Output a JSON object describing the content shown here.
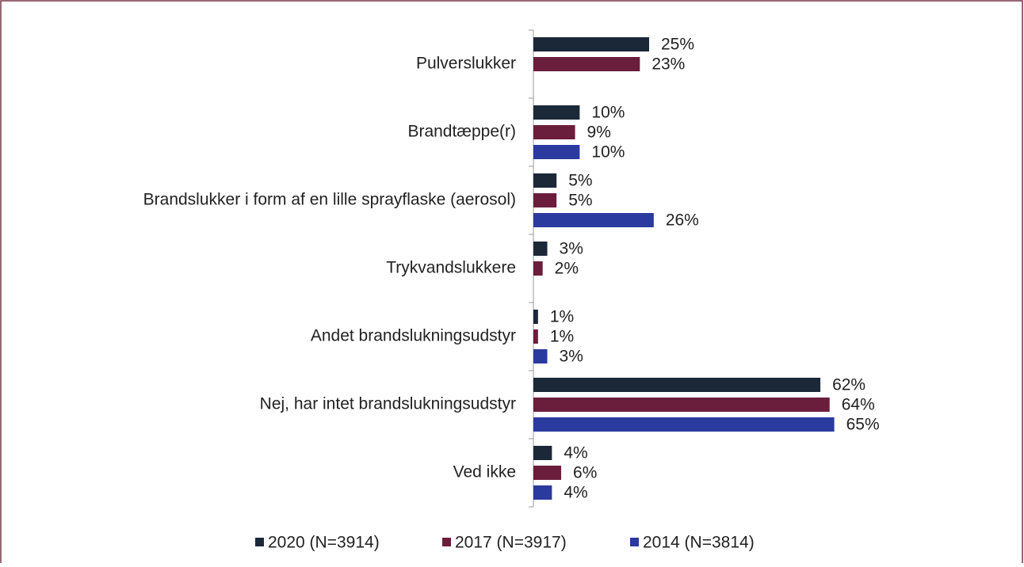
{
  "chart_data": {
    "type": "barh",
    "categories": [
      "Pulverslukker",
      "Brandtæppe(r)",
      "Brandslukker i form af en lille sprayflaske (aerosol)",
      "Trykvandslukkere",
      "Andet brandslukningsudstyr",
      "Nej, har intet brandslukningsudstyr",
      "Ved ikke"
    ],
    "series": [
      {
        "name": "2020 (N=3914)",
        "color": "#1b2838",
        "values": [
          25,
          10,
          5,
          3,
          1,
          62,
          4
        ],
        "value_labels": [
          "25%",
          "10%",
          "5%",
          "3%",
          "1%",
          "62%",
          "4%"
        ]
      },
      {
        "name": "2017 (N=3917)",
        "color": "#6b1e3c",
        "values": [
          23,
          9,
          5,
          2,
          1,
          64,
          6
        ],
        "value_labels": [
          "23%",
          "9%",
          "5%",
          "2%",
          "1%",
          "64%",
          "6%"
        ]
      },
      {
        "name": "2014 (N=3814)",
        "color": "#2a3a9e",
        "values": [
          null,
          10,
          26,
          null,
          3,
          65,
          4
        ],
        "value_labels": [
          null,
          "10%",
          "26%",
          null,
          "3%",
          "65%",
          "4%"
        ]
      }
    ],
    "xlim": [
      0,
      100
    ],
    "legend": "bottom"
  }
}
